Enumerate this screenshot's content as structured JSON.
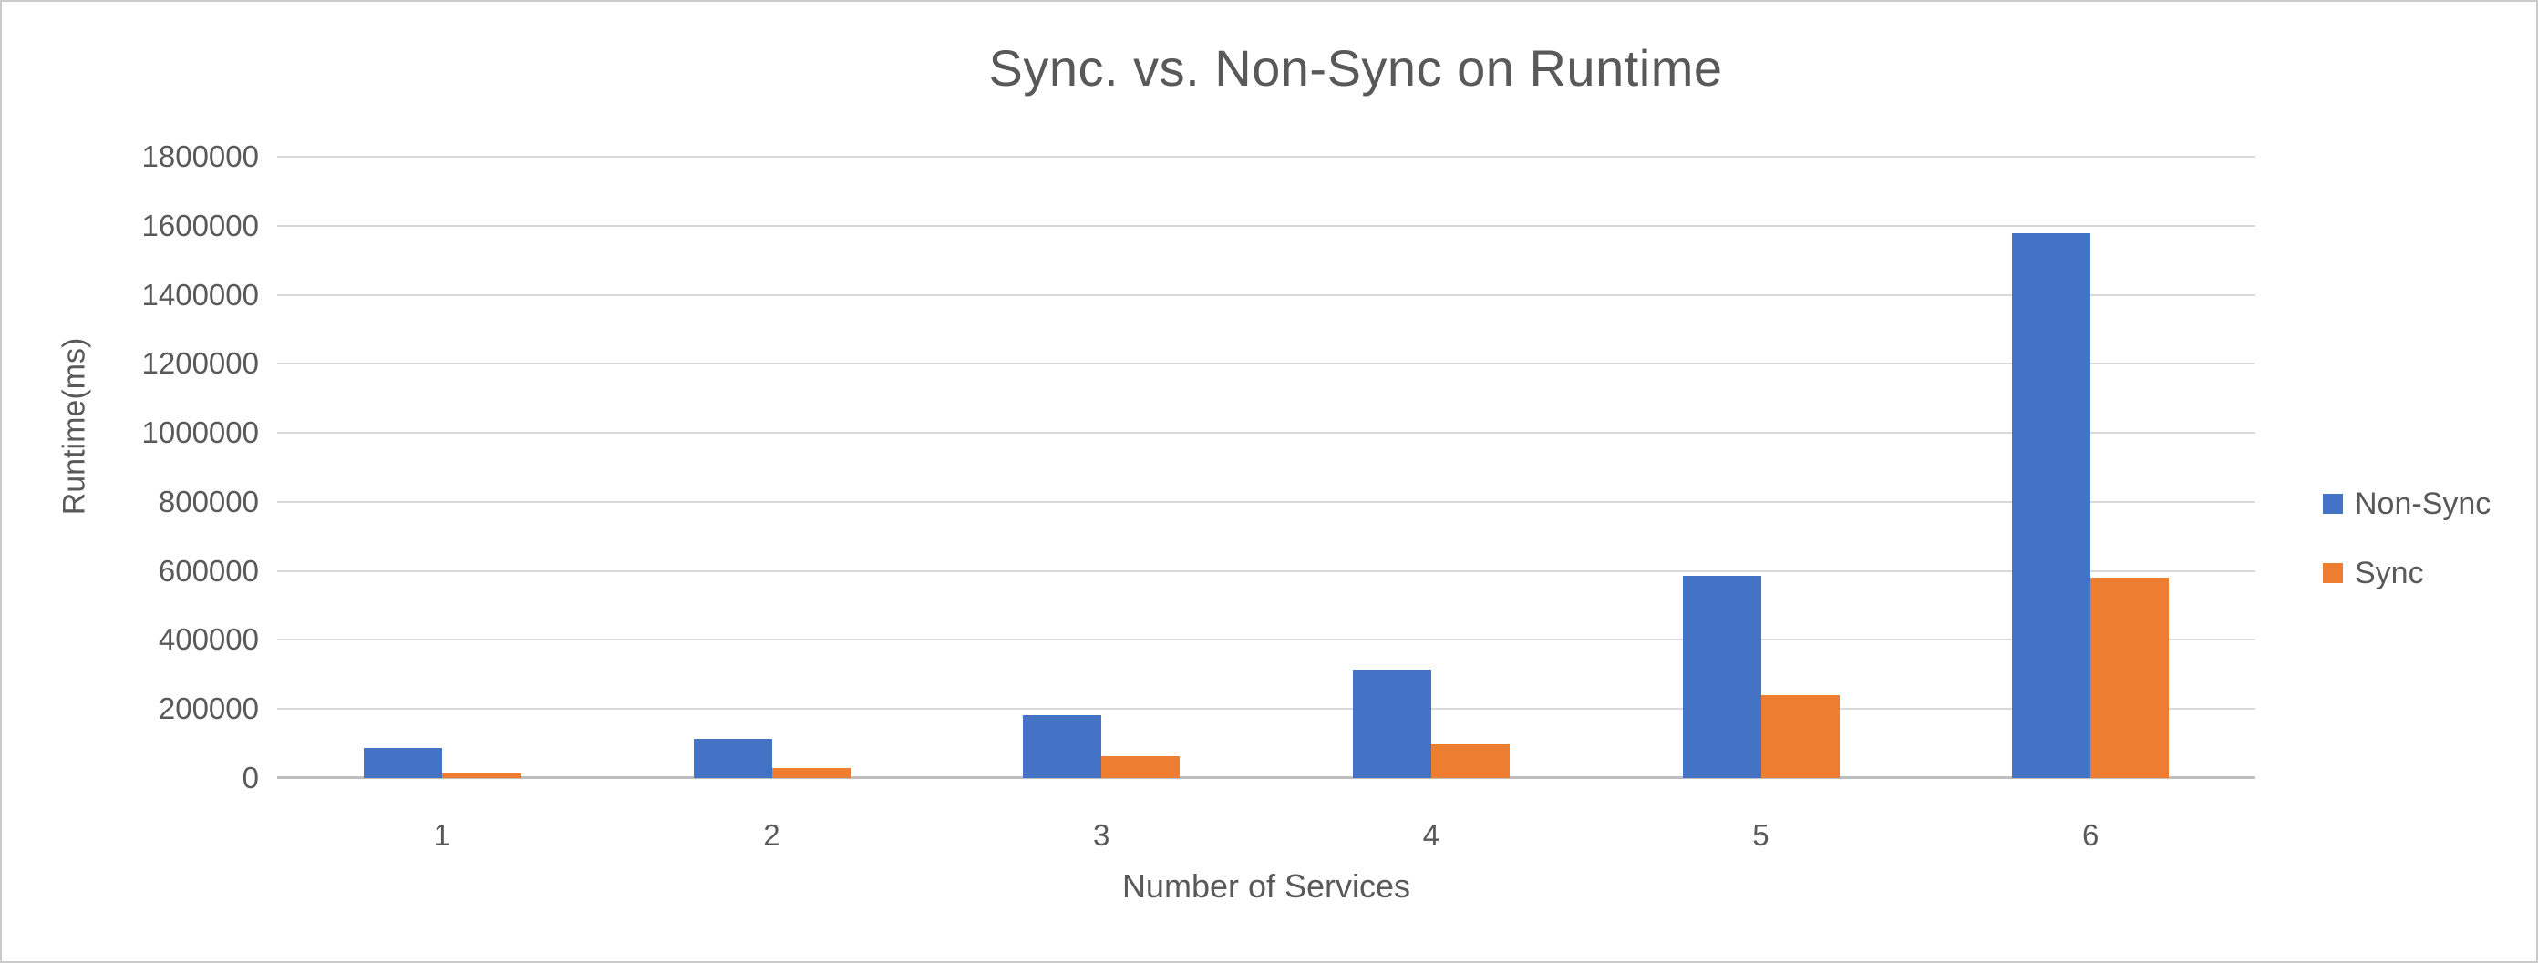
{
  "page": {
    "background_color": "#ffffff",
    "border_color": "#cbcbcb",
    "text_color": "#595959",
    "gridline_color": "#d9d9d9",
    "axis_line_color": "#bfbfbf"
  },
  "chart_data": {
    "type": "bar",
    "title": "Sync. vs. Non-Sync on Runtime",
    "xlabel": "Number of Services",
    "ylabel": "Runtime(ms)",
    "categories": [
      "1",
      "2",
      "3",
      "4",
      "5",
      "6"
    ],
    "series": [
      {
        "name": "Non-Sync",
        "color": "#4472C4",
        "values": [
          87000,
          113000,
          181000,
          313000,
          586000,
          1578000
        ]
      },
      {
        "name": "Sync",
        "color": "#ED7D31",
        "values": [
          12000,
          28000,
          64000,
          97000,
          241000,
          580000
        ]
      }
    ],
    "ylim": [
      0,
      1800000
    ],
    "ytick_step": 200000,
    "ytick_labels": [
      "0",
      "200000",
      "400000",
      "600000",
      "800000",
      "1000000",
      "1200000",
      "1400000",
      "1600000",
      "1800000"
    ],
    "grid": true,
    "legend_position": "right"
  }
}
